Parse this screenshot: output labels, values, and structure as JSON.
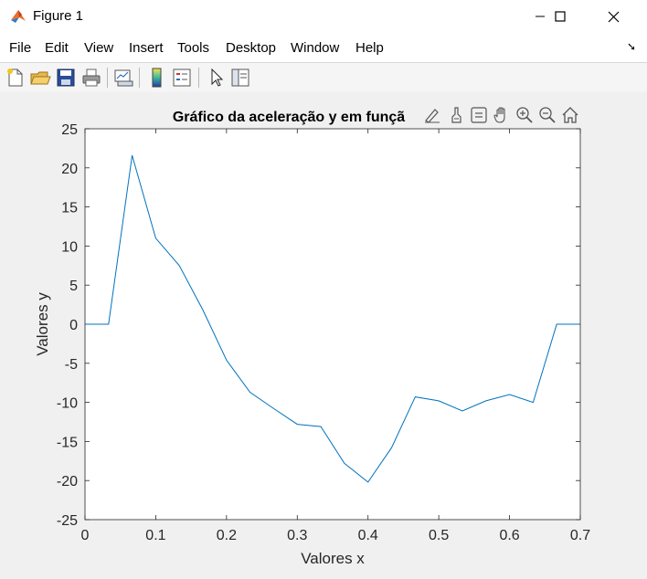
{
  "window": {
    "title": "Figure 1",
    "minimize_icon": "minimize-icon",
    "maximize_icon": "maximize-icon",
    "close_icon": "close-icon"
  },
  "menu": {
    "items": [
      "File",
      "Edit",
      "View",
      "Insert",
      "Tools",
      "Desktop",
      "Window",
      "Help"
    ]
  },
  "toolbar": {
    "buttons": [
      "new-figure-icon",
      "open-file-icon",
      "save-icon",
      "print-icon",
      "link-plot-icon",
      "colorbar-icon",
      "legend-icon",
      "pointer-icon",
      "property-inspector-icon"
    ]
  },
  "axes_toolbar": {
    "buttons": [
      "brush-edit-icon",
      "data-brush-icon",
      "data-tips-icon",
      "pan-hand-icon",
      "zoom-in-icon",
      "zoom-out-icon",
      "home-icon"
    ]
  },
  "colors": {
    "line": "#0072bd",
    "axes_bg": "#ffffff",
    "figure_bg": "#f0f0f0"
  },
  "chart_data": {
    "type": "line",
    "title": "Gráfico da aceleração y em funçã",
    "xlabel": "Valores x",
    "ylabel": "Valores y",
    "xlim": [
      0,
      0.7
    ],
    "ylim": [
      -25,
      25
    ],
    "xticks": [
      0,
      0.1,
      0.2,
      0.3,
      0.4,
      0.5,
      0.6,
      0.7
    ],
    "xtick_labels": [
      "0",
      "0.1",
      "0.2",
      "0.3",
      "0.4",
      "0.5",
      "0.6",
      "0.7"
    ],
    "yticks": [
      25,
      20,
      15,
      10,
      5,
      0,
      -5,
      -10,
      -15,
      -20,
      -25
    ],
    "ytick_labels": [
      "25",
      "20",
      "15",
      "10",
      "5",
      "0",
      "-5",
      "-10",
      "-15",
      "-20",
      "-25"
    ],
    "grid": false,
    "series": [
      {
        "x": [
          0,
          0.0333,
          0.0667,
          0.1,
          0.1333,
          0.1667,
          0.2,
          0.2333,
          0.2667,
          0.3,
          0.3333,
          0.3667,
          0.4,
          0.4333,
          0.4667,
          0.5,
          0.5333,
          0.5667,
          0.6,
          0.6333,
          0.6667,
          0.7
        ],
        "y": [
          0,
          0,
          21.6,
          11.0,
          7.5,
          1.8,
          -4.6,
          -8.7,
          -10.8,
          -12.8,
          -13.1,
          -17.8,
          -20.2,
          -15.8,
          -9.3,
          -9.8,
          -11.1,
          -9.8,
          -9.0,
          -10.0,
          0,
          0
        ]
      }
    ]
  }
}
